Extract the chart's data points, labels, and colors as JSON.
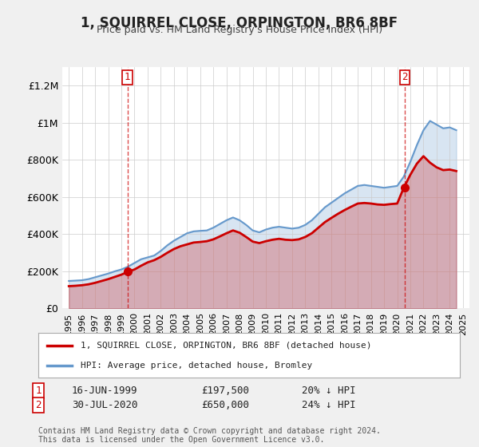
{
  "title": "1, SQUIRREL CLOSE, ORPINGTON, BR6 8BF",
  "subtitle": "Price paid vs. HM Land Registry's House Price Index (HPI)",
  "ylim": [
    0,
    1300000
  ],
  "yticks": [
    0,
    200000,
    400000,
    600000,
    800000,
    1000000,
    1200000
  ],
  "ytick_labels": [
    "£0",
    "£200K",
    "£400K",
    "£600K",
    "£800K",
    "£1M",
    "£1.2M"
  ],
  "bg_color": "#f0f0f0",
  "plot_bg_color": "#ffffff",
  "red_line_color": "#cc0000",
  "blue_line_color": "#6699cc",
  "transaction1": {
    "date": "16-JUN-1999",
    "price": 197500,
    "pct": "20% ↓ HPI",
    "label": "1"
  },
  "transaction2": {
    "date": "30-JUL-2020",
    "price": 650000,
    "pct": "24% ↓ HPI",
    "label": "2"
  },
  "legend_line1": "1, SQUIRREL CLOSE, ORPINGTON, BR6 8BF (detached house)",
  "legend_line2": "HPI: Average price, detached house, Bromley",
  "footer": "Contains HM Land Registry data © Crown copyright and database right 2024.\nThis data is licensed under the Open Government Licence v3.0.",
  "hpi_x": [
    1995.0,
    1995.5,
    1996.0,
    1996.5,
    1997.0,
    1997.5,
    1998.0,
    1998.5,
    1999.0,
    1999.5,
    2000.0,
    2000.5,
    2001.0,
    2001.5,
    2002.0,
    2002.5,
    2003.0,
    2003.5,
    2004.0,
    2004.5,
    2005.0,
    2005.5,
    2006.0,
    2006.5,
    2007.0,
    2007.5,
    2008.0,
    2008.5,
    2009.0,
    2009.5,
    2010.0,
    2010.5,
    2011.0,
    2011.5,
    2012.0,
    2012.5,
    2013.0,
    2013.5,
    2014.0,
    2014.5,
    2015.0,
    2015.5,
    2016.0,
    2016.5,
    2017.0,
    2017.5,
    2018.0,
    2018.5,
    2019.0,
    2019.5,
    2020.0,
    2020.5,
    2021.0,
    2021.5,
    2022.0,
    2022.5,
    2023.0,
    2023.5,
    2024.0,
    2024.5
  ],
  "hpi_y": [
    148000,
    150000,
    152000,
    158000,
    168000,
    178000,
    188000,
    200000,
    210000,
    225000,
    245000,
    265000,
    275000,
    285000,
    310000,
    340000,
    365000,
    385000,
    405000,
    415000,
    418000,
    420000,
    435000,
    455000,
    475000,
    490000,
    475000,
    450000,
    420000,
    410000,
    425000,
    435000,
    440000,
    435000,
    430000,
    435000,
    450000,
    475000,
    510000,
    545000,
    570000,
    595000,
    620000,
    640000,
    660000,
    665000,
    660000,
    655000,
    650000,
    655000,
    660000,
    710000,
    790000,
    880000,
    960000,
    1010000,
    990000,
    970000,
    975000,
    960000
  ],
  "price_x": [
    1995.0,
    1995.5,
    1996.0,
    1996.5,
    1997.0,
    1997.5,
    1998.0,
    1998.5,
    1999.0,
    1999.5,
    2000.0,
    2000.5,
    2001.0,
    2001.5,
    2002.0,
    2002.5,
    2003.0,
    2003.5,
    2004.0,
    2004.5,
    2005.0,
    2005.5,
    2006.0,
    2006.5,
    2007.0,
    2007.5,
    2008.0,
    2008.5,
    2009.0,
    2009.5,
    2010.0,
    2010.5,
    2011.0,
    2011.5,
    2012.0,
    2012.5,
    2013.0,
    2013.5,
    2014.0,
    2014.5,
    2015.0,
    2015.5,
    2016.0,
    2016.5,
    2017.0,
    2017.5,
    2018.0,
    2018.5,
    2019.0,
    2019.5,
    2020.0,
    2020.5,
    2021.0,
    2021.5,
    2022.0,
    2022.5,
    2023.0,
    2023.5,
    2024.0,
    2024.5
  ],
  "price_y": [
    120000,
    122000,
    125000,
    130000,
    138000,
    148000,
    158000,
    170000,
    182000,
    197500,
    210000,
    230000,
    248000,
    260000,
    278000,
    300000,
    320000,
    335000,
    345000,
    355000,
    358000,
    362000,
    372000,
    388000,
    405000,
    420000,
    408000,
    385000,
    360000,
    352000,
    362000,
    370000,
    375000,
    370000,
    368000,
    372000,
    385000,
    405000,
    435000,
    465000,
    488000,
    510000,
    530000,
    548000,
    565000,
    568000,
    565000,
    560000,
    558000,
    562000,
    565000,
    650000,
    720000,
    780000,
    820000,
    785000,
    760000,
    745000,
    748000,
    740000
  ],
  "x_min": 1994.5,
  "x_max": 2025.5,
  "xticks": [
    1995,
    1996,
    1997,
    1998,
    1999,
    2000,
    2001,
    2002,
    2003,
    2004,
    2005,
    2006,
    2007,
    2008,
    2009,
    2010,
    2011,
    2012,
    2013,
    2014,
    2015,
    2016,
    2017,
    2018,
    2019,
    2020,
    2021,
    2022,
    2023,
    2024,
    2025
  ],
  "vline1_x": 1999.46,
  "vline2_x": 2020.58,
  "marker1_x": 1999.46,
  "marker1_y": 197500,
  "marker2_x": 2020.58,
  "marker2_y": 650000
}
